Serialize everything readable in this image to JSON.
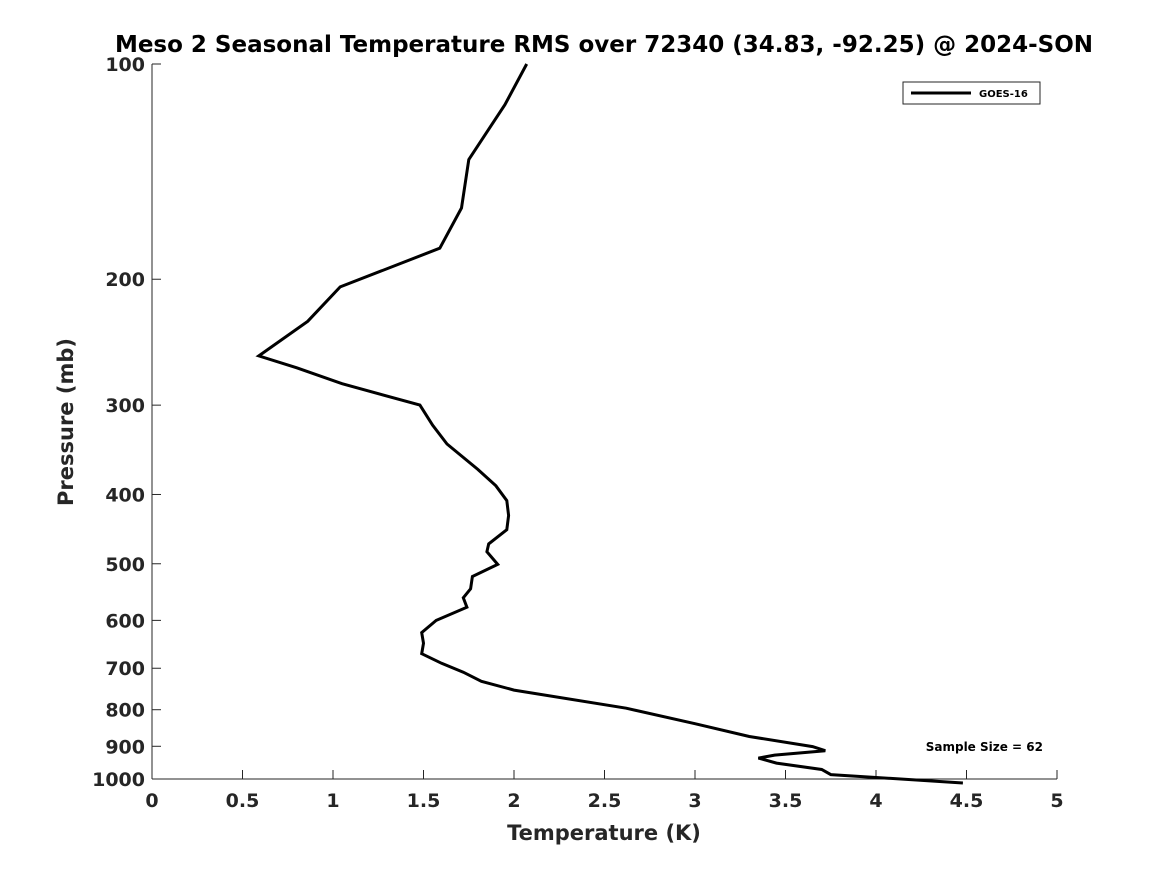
{
  "chart_data": {
    "type": "line",
    "title": "Meso 2 Seasonal Temperature RMS over 72340 (34.83, -92.25) @ 2024-SON",
    "xlabel": "Temperature (K)",
    "ylabel": "Pressure (mb)",
    "xlim": [
      0,
      5
    ],
    "ylim": [
      1000,
      100
    ],
    "y_scale": "log",
    "y_reversed": true,
    "x_ticks": [
      "0",
      "0.5",
      "1",
      "1.5",
      "2",
      "2.5",
      "3",
      "3.5",
      "4",
      "4.5",
      "5"
    ],
    "y_ticks": [
      "100",
      "200",
      "300",
      "400",
      "500",
      "600",
      "700",
      "800",
      "900",
      "1000"
    ],
    "grid": false,
    "legend_position": "top-right",
    "series": [
      {
        "name": "GOES-16",
        "color": "#000000",
        "x": [
          2.07,
          1.95,
          1.75,
          1.71,
          1.59,
          1.04,
          0.86,
          0.59,
          0.8,
          1.05,
          1.48,
          1.55,
          1.63,
          1.8,
          1.9,
          1.96,
          1.97,
          1.96,
          1.86,
          1.85,
          1.91,
          1.77,
          1.76,
          1.72,
          1.74,
          1.57,
          1.49,
          1.5,
          1.49,
          1.6,
          1.72,
          1.82,
          2.0,
          2.62,
          3.0,
          3.3,
          3.65,
          3.72,
          3.44,
          3.35,
          3.45,
          3.7,
          3.75,
          4.48
        ],
        "y": [
          100,
          114,
          136,
          159,
          181,
          205,
          229,
          256,
          266,
          280,
          300,
          320,
          340,
          369,
          389,
          408,
          428,
          448,
          469,
          481,
          501,
          521,
          542,
          558,
          575,
          600,
          624,
          646,
          668,
          689,
          709,
          730,
          751,
          796,
          837,
          872,
          901,
          913,
          926,
          935,
          950,
          970,
          986,
          1013
        ]
      }
    ],
    "annotation": "Sample Size = 62"
  }
}
